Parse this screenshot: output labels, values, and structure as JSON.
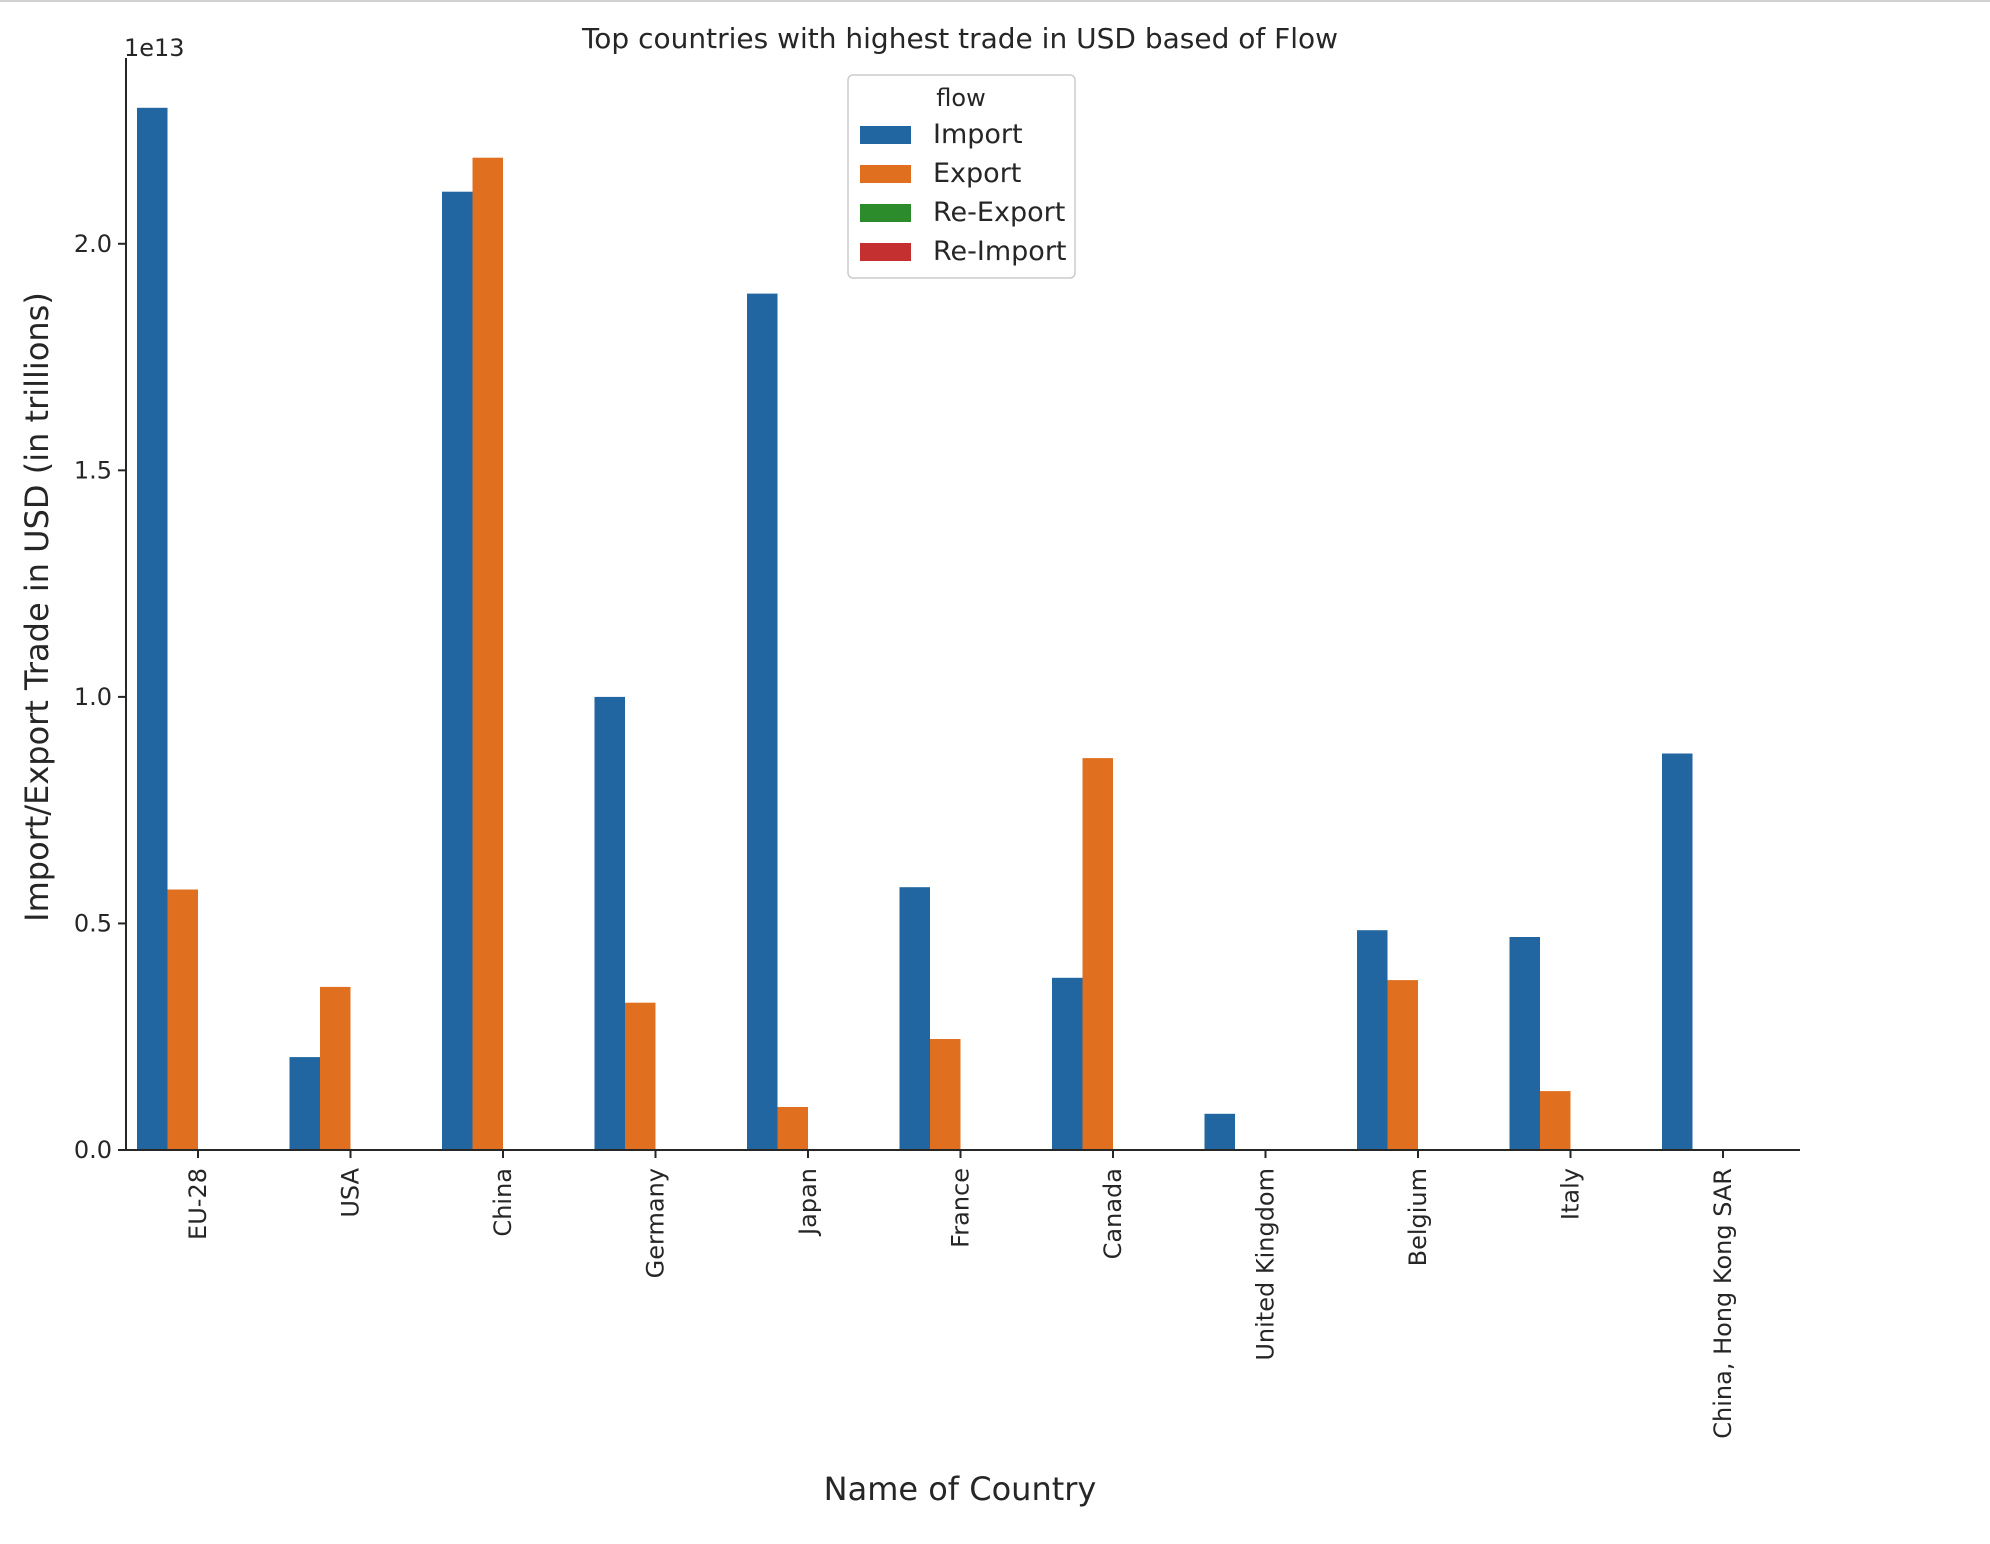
{
  "chart_data": {
    "type": "bar",
    "title": "Top countries with highest trade in USD based of Flow",
    "xlabel": "Name of Country",
    "ylabel": "Import/Export Trade in USD (in trillions)",
    "y_offset_label": "1e13",
    "ylim": [
      0,
      2.41
    ],
    "yticks": [
      0.0,
      0.5,
      1.0,
      1.5,
      2.0
    ],
    "ytick_labels": [
      "0.0",
      "0.5",
      "1.0",
      "1.5",
      "2.0"
    ],
    "categories": [
      "EU-28",
      "USA",
      "China",
      "Germany",
      "Japan",
      "France",
      "Canada",
      "United Kingdom",
      "Belgium",
      "Italy",
      "China, Hong Kong SAR"
    ],
    "series": [
      {
        "name": "Import",
        "color": "#2166a0",
        "values": [
          2.3,
          0.205,
          2.115,
          1.0,
          1.89,
          0.58,
          0.38,
          0.08,
          0.485,
          0.47,
          0.875
        ]
      },
      {
        "name": "Export",
        "color": "#e07020",
        "values": [
          0.575,
          0.36,
          2.19,
          0.325,
          0.095,
          0.245,
          0.865,
          0,
          0.375,
          0.13,
          0
        ]
      },
      {
        "name": "Re-Export",
        "color": "#2c8c2c",
        "values": [
          0,
          0,
          0,
          0,
          0,
          0,
          0,
          0,
          0,
          0,
          0
        ]
      },
      {
        "name": "Re-Import",
        "color": "#c43030",
        "values": [
          0,
          0,
          0,
          0,
          0,
          0,
          0,
          0,
          0,
          0,
          0
        ]
      }
    ],
    "legend": {
      "title": "flow",
      "placement": "upper-center"
    },
    "grid": false
  }
}
